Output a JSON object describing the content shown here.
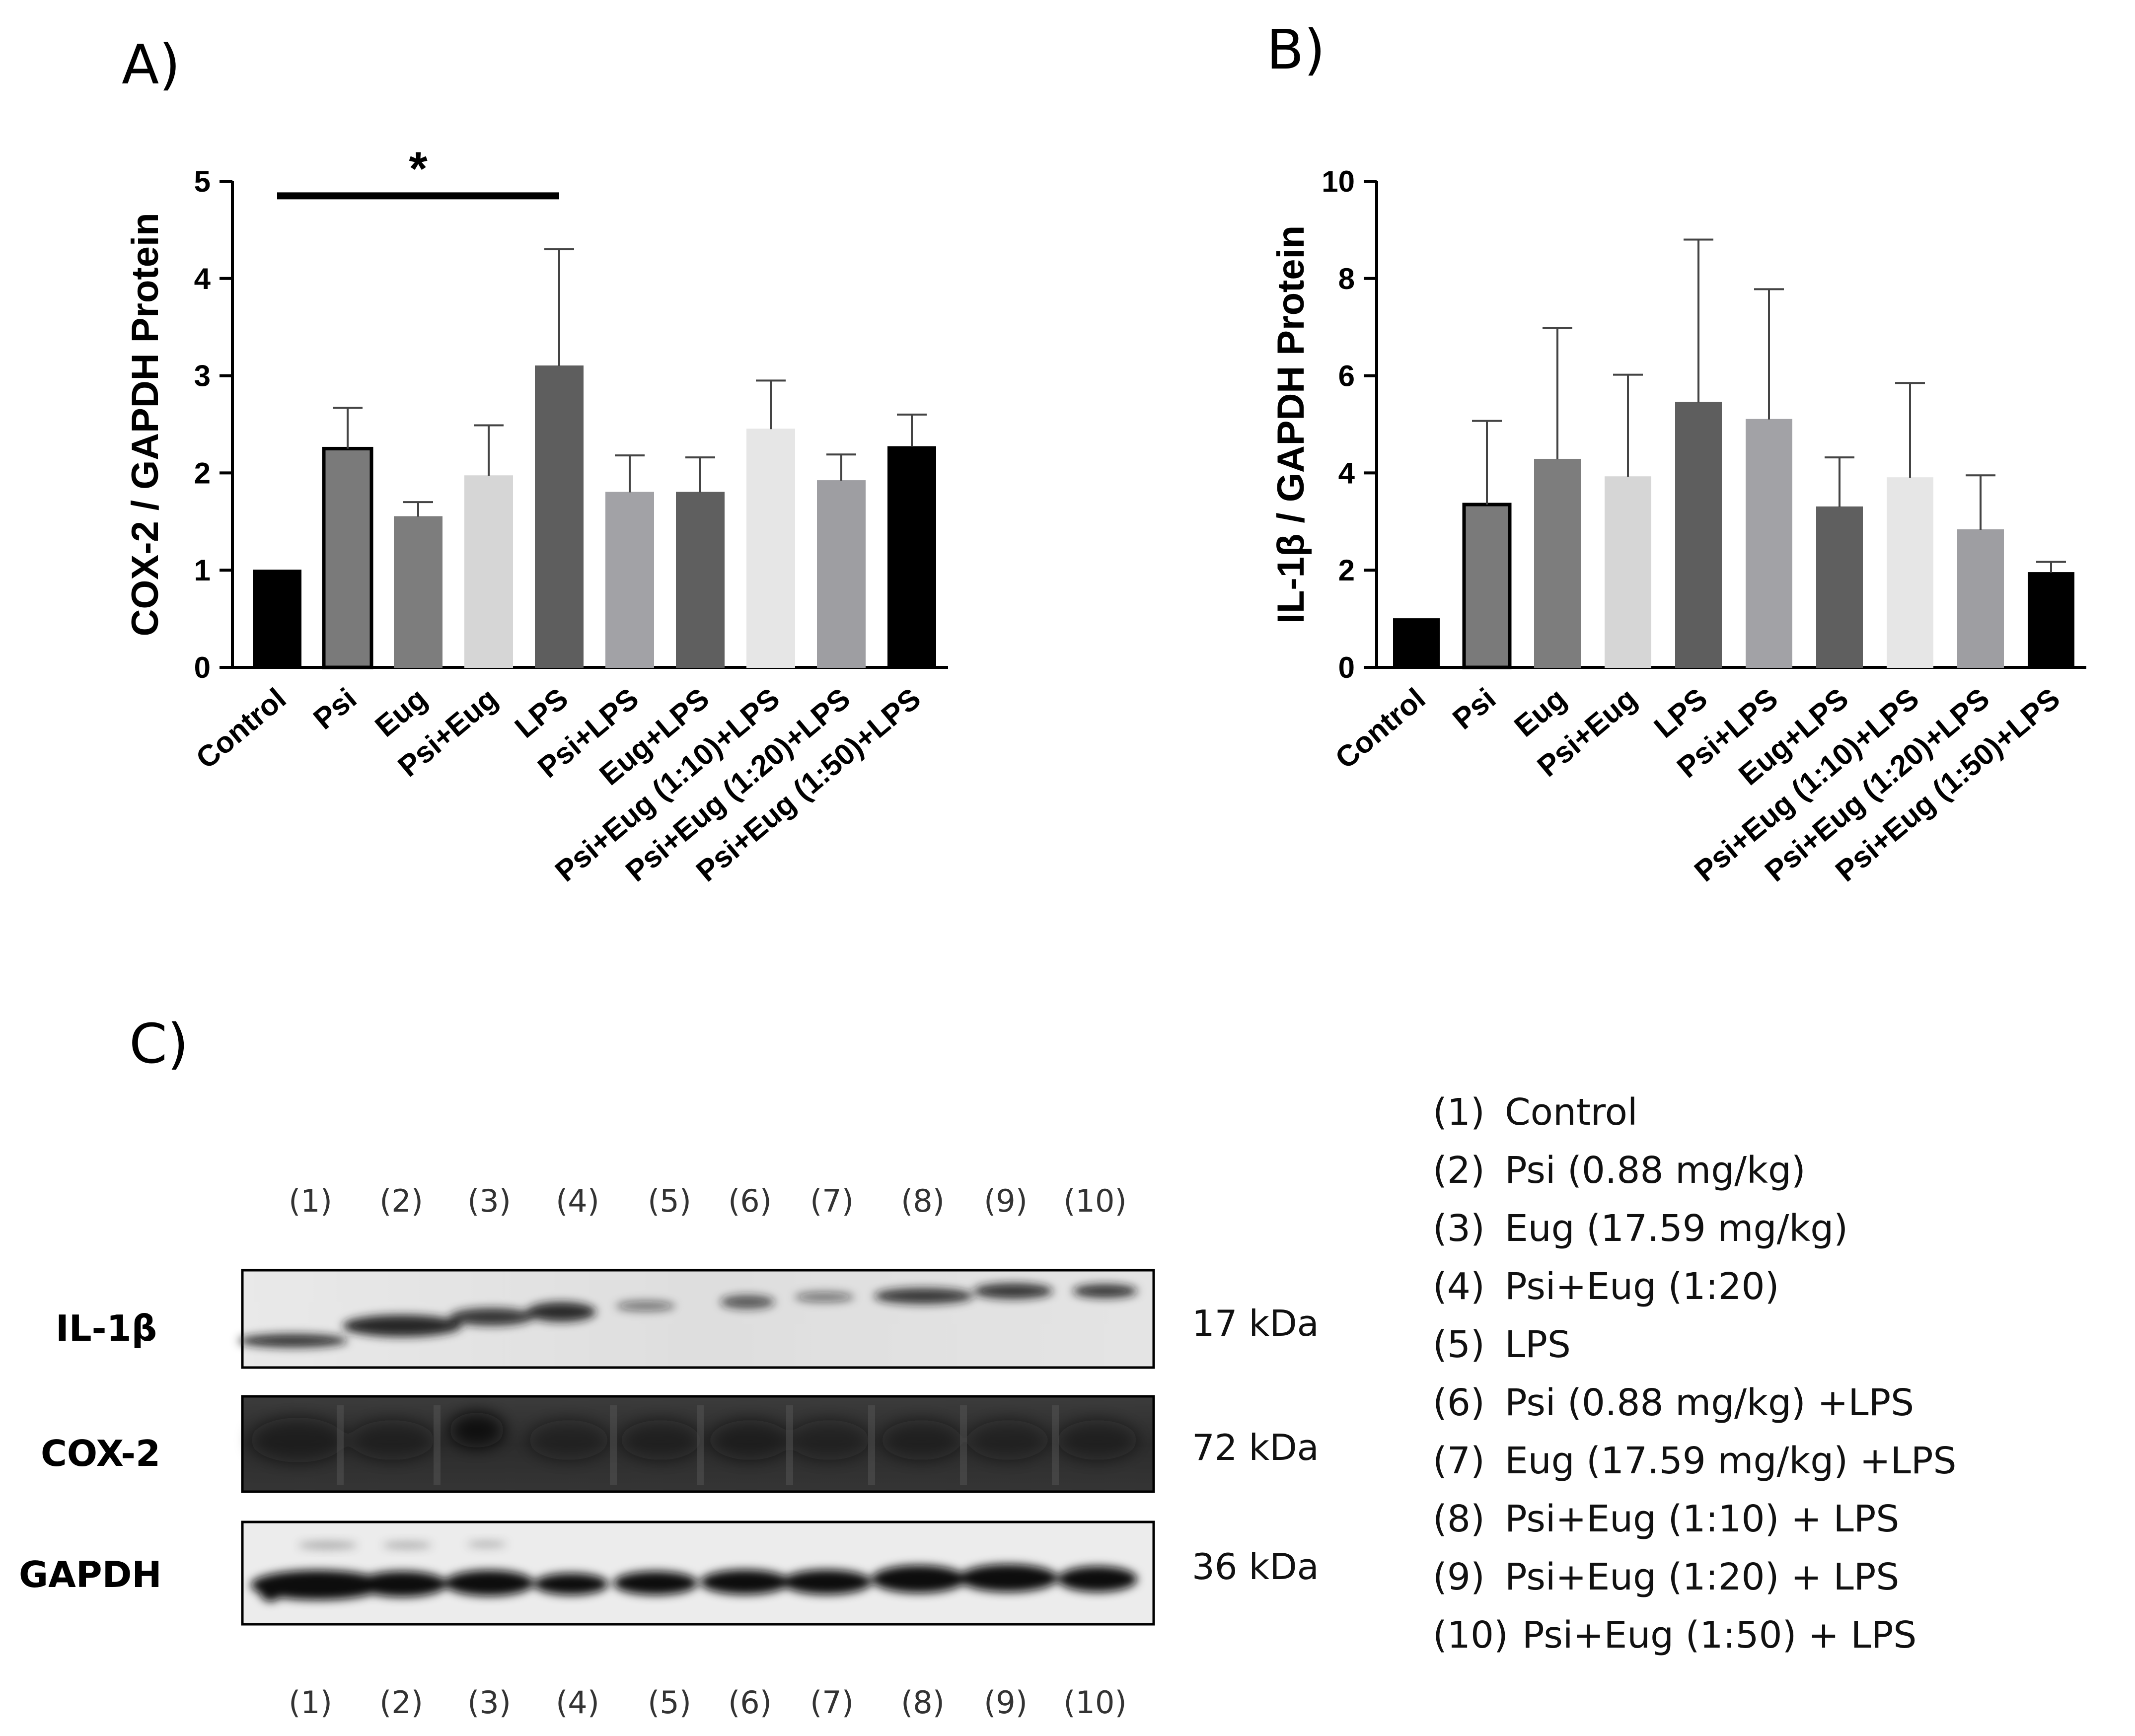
{
  "panel_labels": {
    "a": "A)",
    "b": "B)",
    "c": "C)"
  },
  "chart_data": [
    {
      "type": "bar",
      "panel": "A)",
      "ylabel": "COX-2 / GAPDH Protein",
      "xlabel": "",
      "ylim": [
        0,
        5
      ],
      "yticks": [
        0,
        1,
        2,
        3,
        4,
        5
      ],
      "categories": [
        "Control",
        "Psi",
        "Eug",
        "Psi+Eug",
        "LPS",
        "Psi+LPS",
        "Eug+LPS",
        "Psi+Eug (1:10)+LPS",
        "Psi+Eug (1:20)+LPS",
        "Psi+Eug (1:50)+LPS"
      ],
      "values": [
        1.0,
        2.25,
        1.55,
        1.97,
        3.1,
        1.8,
        1.8,
        2.45,
        1.92,
        2.27
      ],
      "error_upper": [
        0,
        0.42,
        0.15,
        0.52,
        1.2,
        0.38,
        0.36,
        0.5,
        0.27,
        0.33
      ],
      "bar_colors": [
        "#000000",
        "#7a7a7a",
        "#7d7d7d",
        "#d6d6d6",
        "#5e5e5e",
        "#a2a2a6",
        "#5f5f5f",
        "#e6e6e6",
        "#9e9ea2",
        "#000000"
      ],
      "significance": {
        "label": "*",
        "from": "Control",
        "to": "LPS",
        "y": 4.85
      }
    },
    {
      "type": "bar",
      "panel": "B)",
      "ylabel": "IL-1β / GAPDH Protein",
      "xlabel": "",
      "ylim": [
        0,
        10
      ],
      "yticks": [
        0,
        2,
        4,
        6,
        8,
        10
      ],
      "categories": [
        "Control",
        "Psi",
        "Eug",
        "Psi+Eug",
        "LPS",
        "Psi+LPS",
        "Eug+LPS",
        "Psi+Eug (1:10)+LPS",
        "Psi+Eug (1:20)+LPS",
        "Psi+Eug (1:50)+LPS"
      ],
      "values": [
        1.0,
        3.35,
        4.28,
        3.92,
        5.45,
        5.1,
        3.3,
        3.9,
        2.83,
        1.95
      ],
      "error_upper": [
        0,
        1.72,
        2.7,
        2.1,
        3.35,
        2.68,
        1.02,
        1.95,
        1.12,
        0.22
      ],
      "bar_colors": [
        "#000000",
        "#7a7a7a",
        "#7d7d7d",
        "#d6d6d6",
        "#5e5e5e",
        "#a2a2a6",
        "#5f5f5f",
        "#e6e6e6",
        "#9e9ea2",
        "#000000"
      ]
    }
  ],
  "blot": {
    "lanes": [
      "(1)",
      "(2)",
      "(3)",
      "(4)",
      "(5)",
      "(6)",
      "(7)",
      "(8)",
      "(9)",
      "(10)"
    ],
    "rows": [
      {
        "label": "IL-1β",
        "kda": "17 kDa"
      },
      {
        "label": "COX-2",
        "kda": "72 kDa"
      },
      {
        "label": "GAPDH",
        "kda": "36 kDa"
      }
    ]
  },
  "legend": [
    {
      "num": "(1)",
      "text": "Control"
    },
    {
      "num": "(2)",
      "text": "Psi (0.88 mg/kg)"
    },
    {
      "num": "(3)",
      "text": "Eug (17.59 mg/kg)"
    },
    {
      "num": "(4)",
      "text": "Psi+Eug (1:20)"
    },
    {
      "num": "(5)",
      "text": "LPS"
    },
    {
      "num": "(6)",
      "text": "Psi (0.88 mg/kg) +LPS"
    },
    {
      "num": "(7)",
      "text": "Eug (17.59 mg/kg) +LPS"
    },
    {
      "num": "(8)",
      "text": "Psi+Eug (1:10) + LPS"
    },
    {
      "num": "(9)",
      "text": "Psi+Eug (1:20) + LPS"
    },
    {
      "num": "(10)",
      "text": "Psi+Eug (1:50) + LPS"
    }
  ]
}
